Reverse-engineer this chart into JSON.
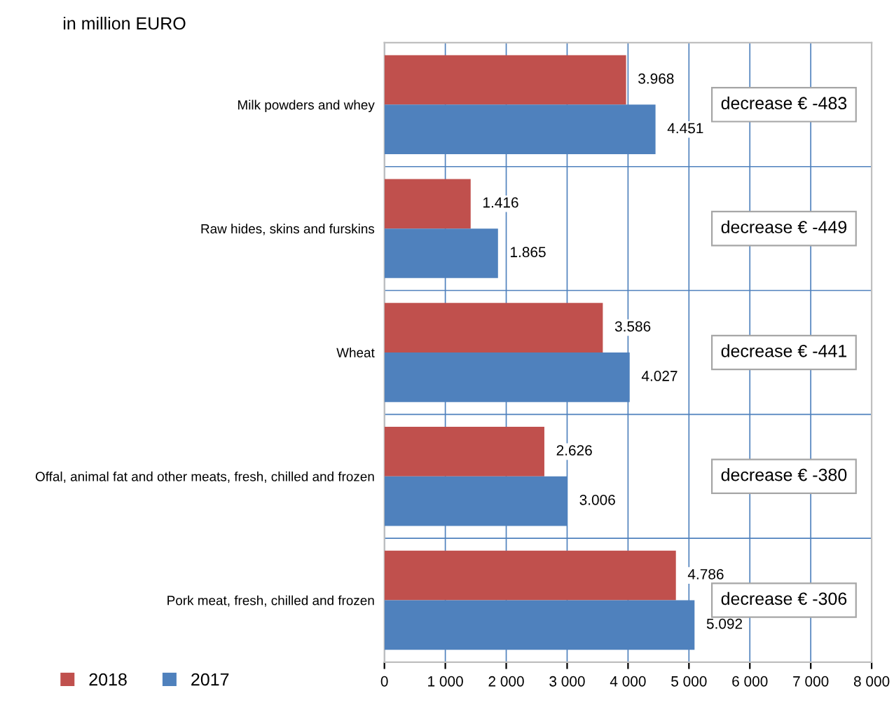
{
  "chart_data": {
    "type": "bar",
    "orientation": "horizontal",
    "title": "in million EURO",
    "categories": [
      "Milk powders and whey",
      "Raw hides, skins and furskins",
      "Wheat",
      "Offal, animal fat and other meats, fresh, chilled and frozen",
      "Pork meat, fresh, chilled and frozen"
    ],
    "series": [
      {
        "name": "2018",
        "color": "#c0504d",
        "values": [
          3968,
          1416,
          3586,
          2626,
          4786
        ],
        "value_labels": [
          "3.968",
          "1.416",
          "3.586",
          "2.626",
          "4.786"
        ]
      },
      {
        "name": "2017",
        "color": "#4f81bd",
        "values": [
          4451,
          1865,
          4027,
          3006,
          5092
        ],
        "value_labels": [
          "4.451",
          "1.865",
          "4.027",
          "3.006",
          "5.092"
        ]
      }
    ],
    "xlim": [
      0,
      8000
    ],
    "xticks": [
      0,
      {
        "value": 1000,
        "label": "1 000"
      },
      {
        "value": 2000,
        "label": "2 000"
      },
      {
        "value": 3000,
        "label": "3 000"
      },
      {
        "value": 4000,
        "label": "4 000"
      },
      {
        "value": 5000,
        "label": "5 000"
      },
      {
        "value": 6000,
        "label": "6 000"
      },
      {
        "value": 7000,
        "label": "7 000"
      },
      {
        "value": 8000,
        "label": "8 000"
      }
    ],
    "annotations": [
      "decrease € -483",
      "decrease € -449",
      "decrease € -441",
      "decrease € -380",
      "decrease € -306"
    ],
    "grid": true,
    "legend": "bottom left"
  }
}
